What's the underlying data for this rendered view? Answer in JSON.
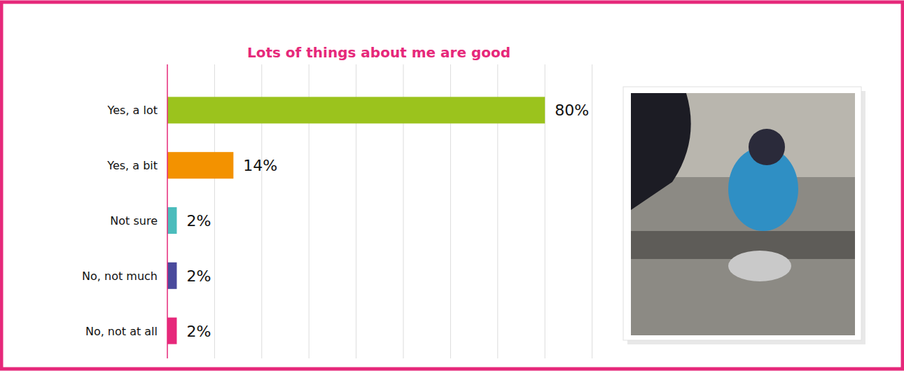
{
  "chart_data": {
    "type": "bar",
    "orientation": "horizontal",
    "title": "Lots of things about me are good",
    "categories": [
      "Yes, a lot",
      "Yes, a bit",
      "Not sure",
      "No, not much",
      "No, not at all"
    ],
    "values": [
      80,
      14,
      2,
      2,
      2
    ],
    "value_labels": [
      "80%",
      "14%",
      "2%",
      "2%",
      "2%"
    ],
    "colors": [
      "#9bc31d",
      "#f39200",
      "#4bbcbc",
      "#4a4a9c",
      "#e6287a"
    ],
    "xlim": [
      0,
      90
    ],
    "xticks": [
      0,
      10,
      20,
      30,
      40,
      50,
      60,
      70,
      80,
      90
    ],
    "grid": true,
    "data_labels": true,
    "tick_labels": false
  }
}
